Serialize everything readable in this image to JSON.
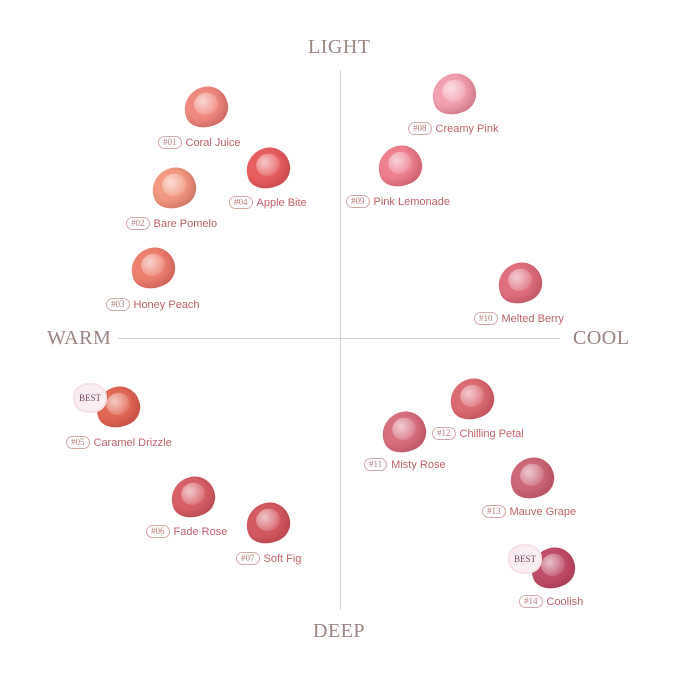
{
  "axes": {
    "top": "LIGHT",
    "bottom": "DEEP",
    "left": "WARM",
    "right": "COOL"
  },
  "badge_label": "BEST",
  "shades": [
    {
      "num": "#01",
      "name": "Coral Juice",
      "color": "#f08a80",
      "best": false
    },
    {
      "num": "#02",
      "name": "Bare Pomelo",
      "color": "#f39a82",
      "best": false
    },
    {
      "num": "#03",
      "name": "Honey Peach",
      "color": "#ee8070",
      "best": false
    },
    {
      "num": "#04",
      "name": "Apple Bite",
      "color": "#e85f60",
      "best": false
    },
    {
      "num": "#05",
      "name": "Caramel Drizzle",
      "color": "#e26856",
      "best": true
    },
    {
      "num": "#06",
      "name": "Fade Rose",
      "color": "#d86068",
      "best": false
    },
    {
      "num": "#07",
      "name": "Soft Fig",
      "color": "#d45a62",
      "best": false
    },
    {
      "num": "#08",
      "name": "Creamy Pink",
      "color": "#f3a0b0",
      "best": false
    },
    {
      "num": "#09",
      "name": "Pink Lemonade",
      "color": "#ee8090",
      "best": false
    },
    {
      "num": "#10",
      "name": "Melted Berry",
      "color": "#e07080",
      "best": false
    },
    {
      "num": "#11",
      "name": "Misty Rose",
      "color": "#d87080",
      "best": false
    },
    {
      "num": "#12",
      "name": "Chilling Petal",
      "color": "#dc6c74",
      "best": false
    },
    {
      "num": "#13",
      "name": "Mauve Grape",
      "color": "#cc6878",
      "best": false
    },
    {
      "num": "#14",
      "name": "Coolish",
      "color": "#c04e6a",
      "best": true
    }
  ]
}
